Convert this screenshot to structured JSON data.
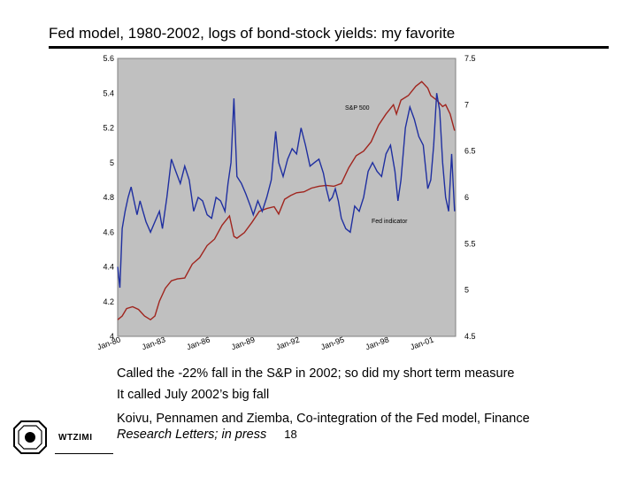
{
  "title": "Fed model, 1980-2002, logs of bond-stock yields: my favorite",
  "notes": {
    "line1": "Called the -22% fall in the S&P in 2002; so did my short term measure",
    "line2": "It called July 2002’s big fall",
    "ref_line1": "Koivu, Pennamen and Ziemba, Co-integration of the Fed model, Finance",
    "ref_line2": "Research Letters; in press",
    "page_number": "18"
  },
  "logo_text": "WTZIMI",
  "colors": {
    "plot_bg": "#c0c0c0",
    "sp500": "#a0251e",
    "fed": "#1f2fa0"
  },
  "chart_data": {
    "type": "line",
    "x_ticks": [
      "Jan-80",
      "Jan-83",
      "Jan-86",
      "Jan-89",
      "Jan-92",
      "Jan-95",
      "Jan-98",
      "Jan-01"
    ],
    "left_axis": {
      "min": 4,
      "max": 5.6,
      "ticks": [
        "5.6",
        "5.4",
        "5.2",
        "5",
        "4.8",
        "4.6",
        "4.4",
        "4.2",
        "4"
      ]
    },
    "right_axis": {
      "min": 4.5,
      "max": 7.5,
      "ticks": [
        "7.5",
        "7",
        "6.5",
        "6",
        "5.5",
        "5",
        "4.5"
      ]
    },
    "annotations": [
      "S&P 500",
      "Fed indicator"
    ],
    "series": [
      {
        "name": "S&P 500",
        "axis": "right",
        "x": [
          1980.0,
          1980.3,
          1980.6,
          1981.0,
          1981.4,
          1981.8,
          1982.2,
          1982.5,
          1982.8,
          1983.2,
          1983.6,
          1984.0,
          1984.5,
          1985.0,
          1985.5,
          1986.0,
          1986.5,
          1987.0,
          1987.5,
          1987.8,
          1988.0,
          1988.5,
          1989.0,
          1989.5,
          1990.0,
          1990.5,
          1990.8,
          1991.2,
          1991.6,
          1992.0,
          1992.5,
          1993.0,
          1993.5,
          1994.0,
          1994.5,
          1995.0,
          1995.5,
          1996.0,
          1996.5,
          1997.0,
          1997.5,
          1998.0,
          1998.5,
          1998.7,
          1999.0,
          1999.5,
          2000.0,
          2000.4,
          2000.8,
          2001.0,
          2001.4,
          2001.8,
          2002.0,
          2002.3,
          2002.6
        ],
        "values": [
          4.68,
          4.72,
          4.8,
          4.82,
          4.79,
          4.72,
          4.68,
          4.72,
          4.88,
          5.02,
          5.1,
          5.12,
          5.13,
          5.28,
          5.35,
          5.48,
          5.55,
          5.7,
          5.8,
          5.58,
          5.56,
          5.62,
          5.73,
          5.85,
          5.88,
          5.9,
          5.82,
          5.98,
          6.02,
          6.05,
          6.06,
          6.1,
          6.12,
          6.13,
          6.12,
          6.15,
          6.32,
          6.45,
          6.5,
          6.6,
          6.78,
          6.9,
          7.0,
          6.9,
          7.05,
          7.1,
          7.2,
          7.25,
          7.18,
          7.1,
          7.05,
          6.98,
          7.0,
          6.9,
          6.72
        ]
      },
      {
        "name": "Fed indicator",
        "axis": "left",
        "x": [
          1980.0,
          1980.15,
          1980.3,
          1980.5,
          1980.7,
          1980.9,
          1981.1,
          1981.3,
          1981.5,
          1981.7,
          1981.9,
          1982.2,
          1982.5,
          1982.8,
          1983.0,
          1983.3,
          1983.6,
          1983.9,
          1984.2,
          1984.5,
          1984.8,
          1985.1,
          1985.4,
          1985.7,
          1986.0,
          1986.3,
          1986.6,
          1986.9,
          1987.2,
          1987.4,
          1987.6,
          1987.8,
          1988.0,
          1988.3,
          1988.6,
          1988.9,
          1989.1,
          1989.4,
          1989.7,
          1990.0,
          1990.3,
          1990.6,
          1990.8,
          1991.1,
          1991.4,
          1991.7,
          1992.0,
          1992.3,
          1992.6,
          1992.9,
          1993.2,
          1993.5,
          1993.8,
          1994.0,
          1994.2,
          1994.4,
          1994.6,
          1994.8,
          1995.0,
          1995.3,
          1995.6,
          1995.9,
          1996.2,
          1996.5,
          1996.8,
          1997.1,
          1997.4,
          1997.7,
          1998.0,
          1998.3,
          1998.6,
          1998.8,
          1999.0,
          1999.3,
          1999.6,
          1999.9,
          2000.2,
          2000.5,
          2000.8,
          2001.0,
          2001.2,
          2001.4,
          2001.6,
          2001.8,
          2002.0,
          2002.2,
          2002.4,
          2002.6
        ],
        "values": [
          4.4,
          4.28,
          4.62,
          4.72,
          4.8,
          4.86,
          4.78,
          4.7,
          4.78,
          4.72,
          4.66,
          4.6,
          4.66,
          4.72,
          4.62,
          4.8,
          5.02,
          4.95,
          4.88,
          4.98,
          4.9,
          4.72,
          4.8,
          4.78,
          4.7,
          4.68,
          4.8,
          4.78,
          4.72,
          4.88,
          5.0,
          5.37,
          4.92,
          4.88,
          4.82,
          4.75,
          4.7,
          4.78,
          4.72,
          4.8,
          4.9,
          5.18,
          5.0,
          4.92,
          5.02,
          5.08,
          5.05,
          5.2,
          5.1,
          4.98,
          5.0,
          5.02,
          4.94,
          4.85,
          4.78,
          4.8,
          4.85,
          4.78,
          4.68,
          4.62,
          4.6,
          4.75,
          4.72,
          4.8,
          4.95,
          5.0,
          4.95,
          4.92,
          5.05,
          5.1,
          4.95,
          4.78,
          4.9,
          5.2,
          5.32,
          5.25,
          5.15,
          5.1,
          4.85,
          4.9,
          5.1,
          5.4,
          5.3,
          5.0,
          4.8,
          4.72,
          5.05,
          4.72
        ]
      }
    ]
  }
}
